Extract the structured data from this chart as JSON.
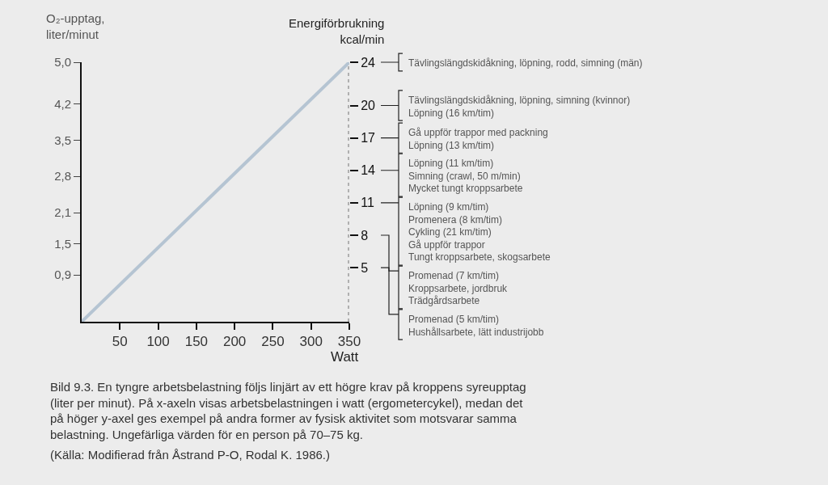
{
  "chart_data": {
    "type": "line",
    "xlabel": "Watt",
    "ylabel": "O₂-upptag,\nliter/minut",
    "y2label": "Energiförbrukning\nkcal/min",
    "x": [
      0,
      350
    ],
    "series": [
      {
        "color": "#b5c4d2",
        "values": [
          0,
          5.0
        ]
      }
    ],
    "xlim": [
      0,
      350
    ],
    "xticks": [
      50,
      100,
      150,
      200,
      250,
      300,
      350
    ],
    "ylim": [
      0,
      5.0
    ],
    "yticks": [
      {
        "value": 0.9,
        "label": "0,9"
      },
      {
        "value": 1.5,
        "label": "1,5"
      },
      {
        "value": 2.1,
        "label": "2,1"
      },
      {
        "value": 2.8,
        "label": "2,8"
      },
      {
        "value": 3.5,
        "label": "3,5"
      },
      {
        "value": 4.2,
        "label": "4,2"
      },
      {
        "value": 5.0,
        "label": "5,0"
      }
    ],
    "y2lim": [
      0,
      24
    ],
    "y2ticks": [
      24,
      20,
      17,
      14,
      11,
      8,
      5
    ],
    "ref_lines": [
      {
        "axis": "x",
        "value": 350,
        "color": "#b0b0b0",
        "line_style": "dotted"
      }
    ],
    "annotations": [
      "Tävlingslängdskidåkning, löpning, rodd, simning (män)",
      "Tävlingslängdskidåkning, löpning, simning (kvinnor)\nLöpning (16 km/tim)",
      "Gå uppför trappor med packning\nLöpning (13 km/tim)",
      "Löpning (11 km/tim)\nSimning (crawl, 50 m/min)\nMycket tungt kroppsarbete",
      "Löpning (9 km/tim)\nPromenera (8 km/tim)\nCykling (21 km/tim)\nGå uppför trappor\nTungt kroppsarbete, skogsarbete",
      "Promenad (7 km/tim)\nKroppsarbete, jordbruk\nTrädgårdsarbete",
      "Promenad (5 km/tim)\nHushållsarbete, lätt industrijobb",
      "Bild 9.3. En tyngre arbetsbelastning följs linjärt av ett högre krav på kroppens syreupptag\n(liter per minut). På x-axeln visas arbetsbelastningen i watt (ergometercykel), medan det\npå höger y-axel ges exempel på andra former av fysisk aktivitet som motsvarar samma\nbelastning. Ungefärliga värden för en person på 70–75 kg.",
      "(Källa: Modifierad från Åstrand P-O, Rodal K. 1986.)"
    ],
    "grid": false,
    "marker": "none",
    "line_style": "solid"
  }
}
